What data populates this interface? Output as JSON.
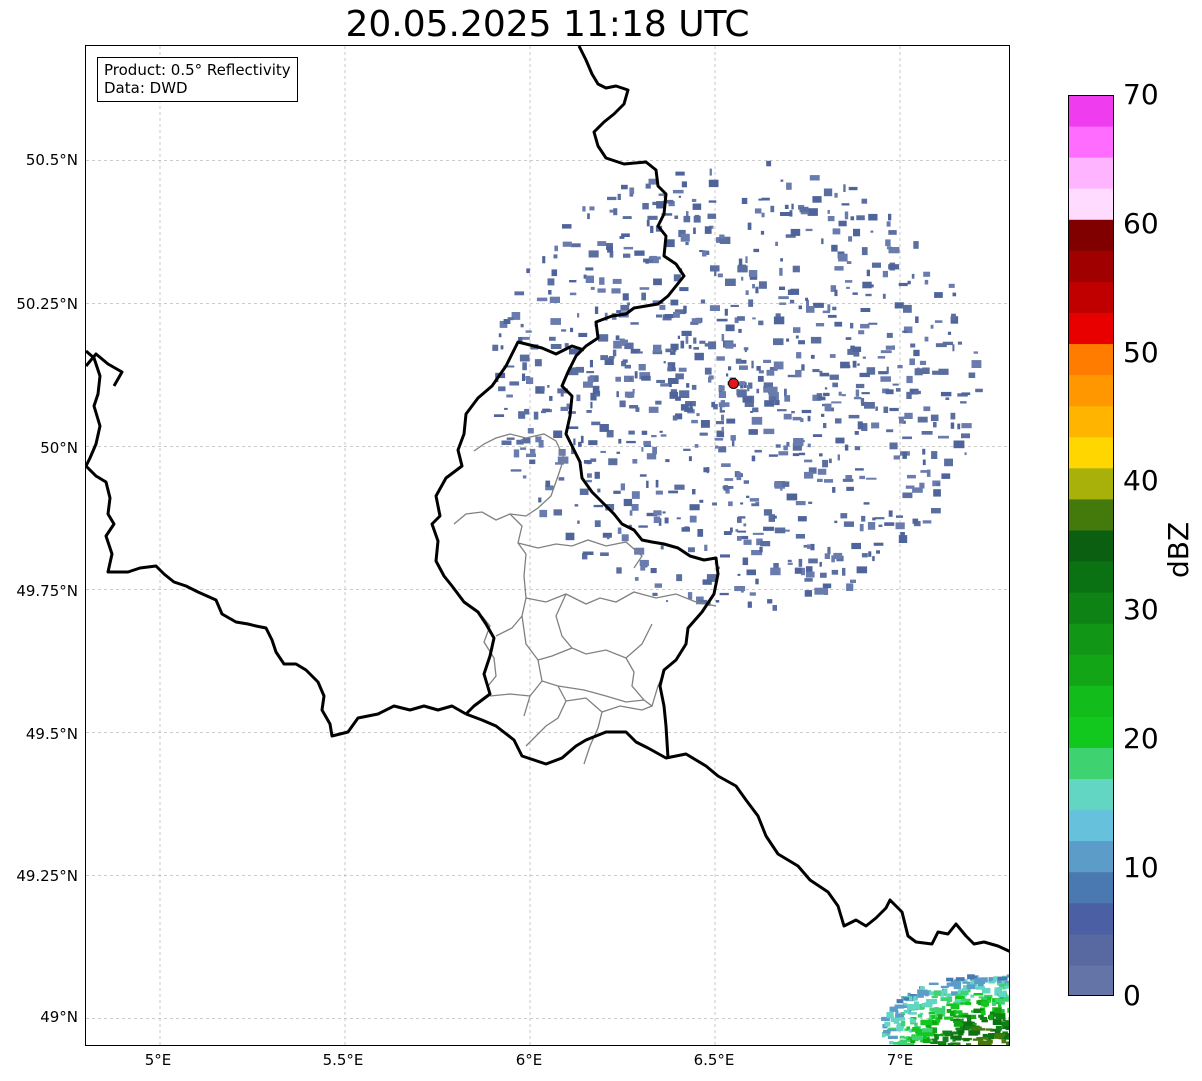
{
  "title": "20.05.2025 11:18 UTC",
  "info": {
    "product": "Product: 0.5° Reflectivity",
    "source": "Data: DWD"
  },
  "axes": {
    "lat_ticks": [
      "50.5°N",
      "50.25°N",
      "50°N",
      "49.75°N",
      "49.5°N",
      "49.25°N",
      "49°N"
    ],
    "lon_ticks": [
      "5°E",
      "5.5°E",
      "6°E",
      "6.5°E",
      "7°E"
    ],
    "extent": {
      "lon_min": 4.8,
      "lon_max": 7.3,
      "lat_min": 48.95,
      "lat_max": 50.7
    }
  },
  "radar_site": {
    "lon": 6.55,
    "lat": 50.11,
    "color": "#e8141c"
  },
  "colorbar": {
    "label": "dBZ",
    "min": 0,
    "max": 70,
    "step": 2.5,
    "tick_labels": [
      "0",
      "10",
      "20",
      "30",
      "40",
      "50",
      "60",
      "70"
    ],
    "colors": [
      "#6474a6",
      "#5868a0",
      "#4a5fa4",
      "#4a78b0",
      "#5b9cc8",
      "#66c2dc",
      "#62d6c2",
      "#3ed270",
      "#12c81e",
      "#12bc1a",
      "#12a616",
      "#129616",
      "#0e8214",
      "#0b7214",
      "#0a6010",
      "#447a0c",
      "#a8b00a",
      "#ffd600",
      "#ffb400",
      "#ff9800",
      "#ff7c00",
      "#e80000",
      "#c00000",
      "#a00000",
      "#800000",
      "#ffdcff",
      "#ffb4ff",
      "#ff6cff",
      "#ee3cee"
    ]
  }
}
